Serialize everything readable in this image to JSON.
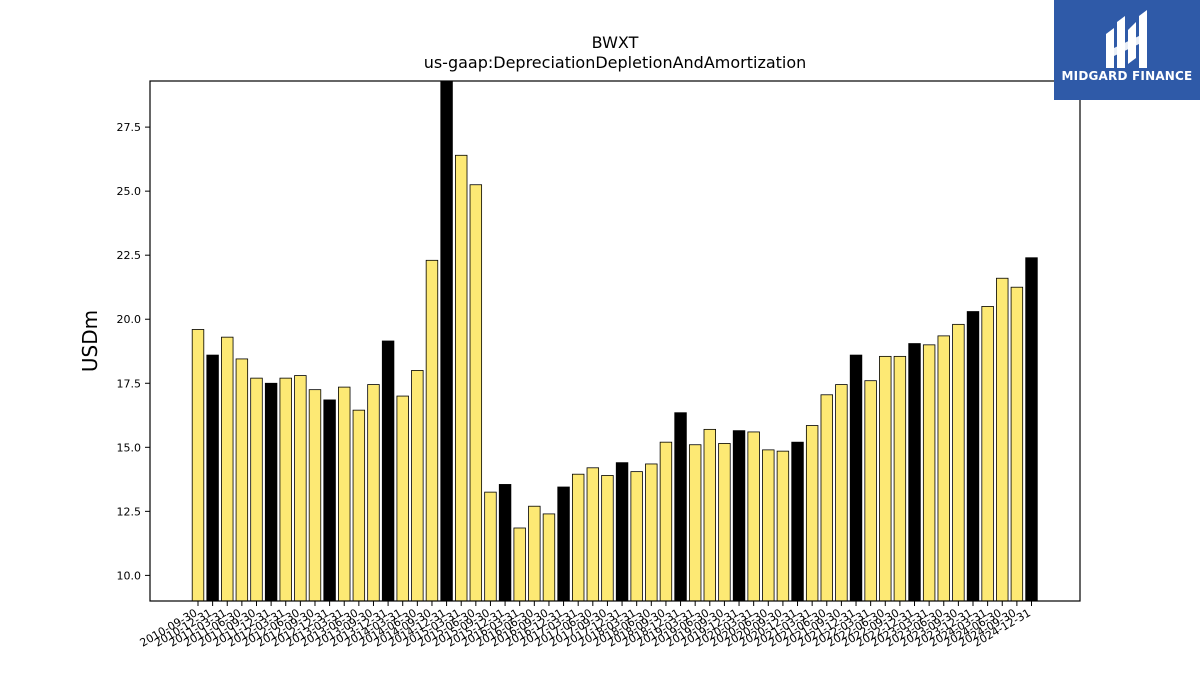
{
  "brand": {
    "name": "MIDGARD FINANCE",
    "logo_icon": "midgard-mark-icon",
    "color": "#2f5aa8"
  },
  "chart_data": {
    "type": "bar",
    "title": "BWXT",
    "subtitle": "us-gaap:DepreciationDepletionAndAmortization",
    "ylabel": "USDm",
    "xlabel": "",
    "ylim": [
      9.0,
      29.3
    ],
    "yticks": [
      10.0,
      12.5,
      15.0,
      17.5,
      20.0,
      22.5,
      25.0,
      27.5
    ],
    "grid": false,
    "colors": {
      "quarter": "#fde974",
      "year_end": "#000000",
      "edge": "#000000"
    },
    "categories": [
      "2010-09-30",
      "2010-12-31",
      "2011-03-31",
      "2011-06-30",
      "2011-09-30",
      "2011-12-31",
      "2012-03-31",
      "2012-06-30",
      "2012-09-30",
      "2012-12-31",
      "2013-03-31",
      "2013-06-30",
      "2013-09-30",
      "2013-12-31",
      "2014-03-31",
      "2014-06-30",
      "2014-09-30",
      "2014-12-31",
      "2015-03-31",
      "2015-06-30",
      "2015-09-30",
      "2015-12-31",
      "2016-03-31",
      "2016-06-30",
      "2016-09-30",
      "2016-12-31",
      "2017-03-31",
      "2017-06-30",
      "2017-09-30",
      "2017-12-31",
      "2018-03-31",
      "2018-06-30",
      "2018-09-30",
      "2018-12-31",
      "2019-03-31",
      "2019-06-30",
      "2019-09-30",
      "2019-12-31",
      "2020-03-31",
      "2020-06-30",
      "2020-09-30",
      "2020-12-31",
      "2021-03-31",
      "2021-06-30",
      "2021-09-30",
      "2021-12-31",
      "2022-03-31",
      "2022-06-30",
      "2022-09-30",
      "2022-12-31",
      "2023-03-31",
      "2023-06-30",
      "2023-09-30",
      "2023-12-31",
      "2024-03-31",
      "2024-06-30",
      "2024-09-30",
      "2024-12-31"
    ],
    "values": [
      19.6,
      18.6,
      19.3,
      18.45,
      17.7,
      17.5,
      17.7,
      17.8,
      17.25,
      16.85,
      17.35,
      16.45,
      17.45,
      19.15,
      17.0,
      18.0,
      22.3,
      29.3,
      26.4,
      25.25,
      13.25,
      13.55,
      11.85,
      12.7,
      12.4,
      13.45,
      13.95,
      14.2,
      13.9,
      14.4,
      14.05,
      14.35,
      15.2,
      16.35,
      15.1,
      15.7,
      15.15,
      15.65,
      15.6,
      14.9,
      14.85,
      15.2,
      15.85,
      17.05,
      17.45,
      18.6,
      17.6,
      18.55,
      18.55,
      19.05,
      19.0,
      19.35,
      19.8,
      20.3,
      20.5,
      21.6,
      21.25,
      22.4
    ]
  }
}
